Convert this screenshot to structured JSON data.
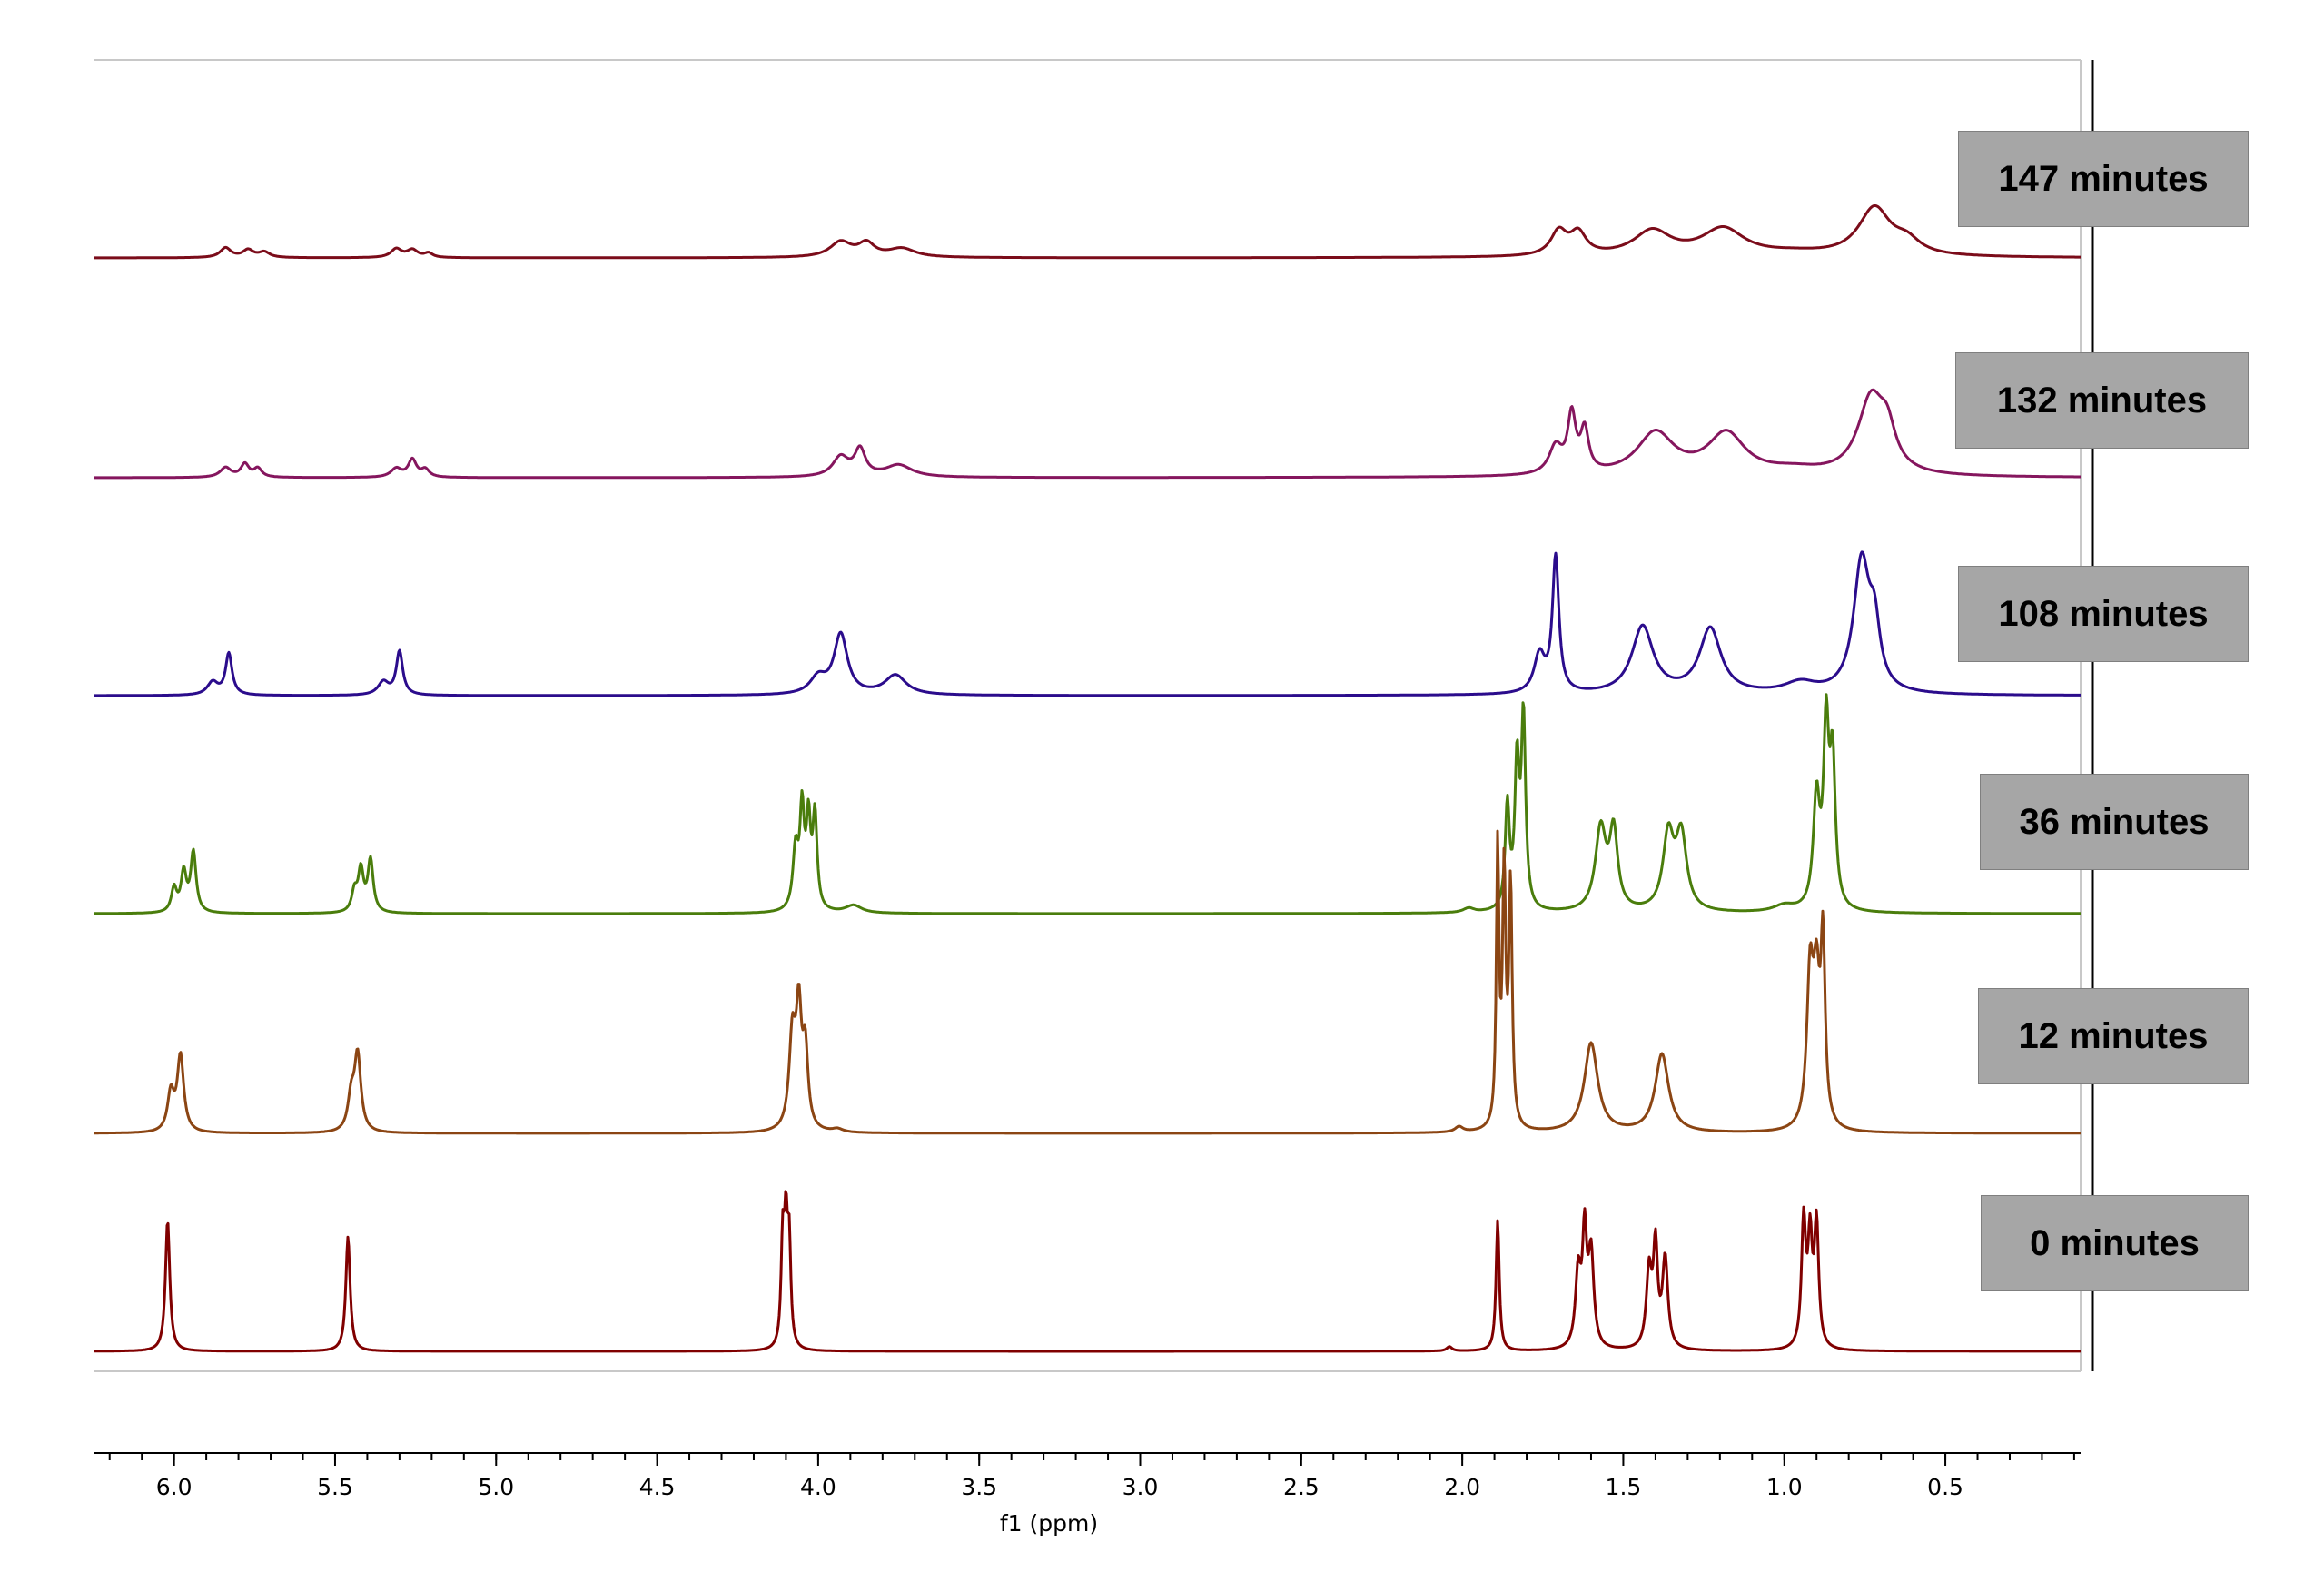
{
  "chart_data": {
    "type": "line",
    "title": "",
    "xlabel": "f1 (ppm)",
    "ylabel": "",
    "xlim": [
      6.25,
      0.08
    ],
    "x_reversed": true,
    "grid": false,
    "legend_placement": "right",
    "x_ticks": [
      6.0,
      5.5,
      5.0,
      4.5,
      4.0,
      3.5,
      3.0,
      2.5,
      2.0,
      1.5,
      1.0,
      0.5
    ],
    "x_tick_labels": [
      "6.0",
      "5.5",
      "5.0",
      "4.5",
      "4.0",
      "3.5",
      "3.0",
      "2.5",
      "2.0",
      "1.5",
      "1.0",
      "0.5"
    ],
    "series": [
      {
        "name": "147 minutes",
        "color": "#7b0c1a",
        "label": "147 minutes",
        "peaks": [
          {
            "ppm": 5.84,
            "height": 0.09,
            "width": 0.02
          },
          {
            "ppm": 5.77,
            "height": 0.07,
            "width": 0.02
          },
          {
            "ppm": 5.72,
            "height": 0.05,
            "width": 0.02
          },
          {
            "ppm": 5.31,
            "height": 0.08,
            "width": 0.02
          },
          {
            "ppm": 5.26,
            "height": 0.07,
            "width": 0.02
          },
          {
            "ppm": 5.21,
            "height": 0.04,
            "width": 0.015
          },
          {
            "ppm": 3.93,
            "height": 0.14,
            "width": 0.04
          },
          {
            "ppm": 3.85,
            "height": 0.12,
            "width": 0.03
          },
          {
            "ppm": 3.74,
            "height": 0.08,
            "width": 0.05
          },
          {
            "ppm": 1.7,
            "height": 0.22,
            "width": 0.03
          },
          {
            "ppm": 1.64,
            "height": 0.2,
            "width": 0.03
          },
          {
            "ppm": 1.41,
            "height": 0.23,
            "width": 0.07
          },
          {
            "ppm": 1.19,
            "height": 0.25,
            "width": 0.08
          },
          {
            "ppm": 0.72,
            "height": 0.44,
            "width": 0.06
          },
          {
            "ppm": 0.62,
            "height": 0.12,
            "width": 0.05
          },
          {
            "ppm": 0.97,
            "height": 0.03,
            "width": 0.12
          }
        ]
      },
      {
        "name": "132 minutes",
        "color": "#85165e",
        "label": "132 minutes",
        "peaks": [
          {
            "ppm": 5.84,
            "height": 0.09,
            "width": 0.02
          },
          {
            "ppm": 5.78,
            "height": 0.12,
            "width": 0.015
          },
          {
            "ppm": 5.74,
            "height": 0.08,
            "width": 0.015
          },
          {
            "ppm": 5.31,
            "height": 0.08,
            "width": 0.02
          },
          {
            "ppm": 5.26,
            "height": 0.16,
            "width": 0.015
          },
          {
            "ppm": 5.22,
            "height": 0.07,
            "width": 0.015
          },
          {
            "ppm": 3.93,
            "height": 0.18,
            "width": 0.03
          },
          {
            "ppm": 3.87,
            "height": 0.24,
            "width": 0.02
          },
          {
            "ppm": 3.75,
            "height": 0.11,
            "width": 0.05
          },
          {
            "ppm": 1.71,
            "height": 0.25,
            "width": 0.025
          },
          {
            "ppm": 1.66,
            "height": 0.52,
            "width": 0.015
          },
          {
            "ppm": 1.62,
            "height": 0.38,
            "width": 0.015
          },
          {
            "ppm": 1.4,
            "height": 0.39,
            "width": 0.07
          },
          {
            "ppm": 1.18,
            "height": 0.38,
            "width": 0.07
          },
          {
            "ppm": 0.73,
            "height": 0.7,
            "width": 0.05
          },
          {
            "ppm": 0.68,
            "height": 0.3,
            "width": 0.03
          },
          {
            "ppm": 0.97,
            "height": 0.05,
            "width": 0.1
          }
        ]
      },
      {
        "name": "108 minutes",
        "color": "#2b0c8c",
        "label": "108 minutes",
        "peaks": [
          {
            "ppm": 5.88,
            "height": 0.12,
            "width": 0.02
          },
          {
            "ppm": 5.83,
            "height": 0.38,
            "width": 0.012
          },
          {
            "ppm": 5.35,
            "height": 0.12,
            "width": 0.02
          },
          {
            "ppm": 5.3,
            "height": 0.4,
            "width": 0.012
          },
          {
            "ppm": 4.0,
            "height": 0.15,
            "width": 0.03
          },
          {
            "ppm": 3.93,
            "height": 0.55,
            "width": 0.025
          },
          {
            "ppm": 3.76,
            "height": 0.18,
            "width": 0.04
          },
          {
            "ppm": 1.76,
            "height": 0.35,
            "width": 0.02
          },
          {
            "ppm": 1.71,
            "height": 1.24,
            "width": 0.012
          },
          {
            "ppm": 1.44,
            "height": 0.62,
            "width": 0.04
          },
          {
            "ppm": 1.23,
            "height": 0.6,
            "width": 0.04
          },
          {
            "ppm": 0.76,
            "height": 1.2,
            "width": 0.03
          },
          {
            "ppm": 0.72,
            "height": 0.5,
            "width": 0.02
          },
          {
            "ppm": 0.95,
            "height": 0.1,
            "width": 0.06
          }
        ]
      },
      {
        "name": "36 minutes",
        "color": "#4a7d0c",
        "label": "36 minutes",
        "peaks": [
          {
            "ppm": 6.0,
            "height": 0.22,
            "width": 0.01
          },
          {
            "ppm": 5.97,
            "height": 0.36,
            "width": 0.01
          },
          {
            "ppm": 5.94,
            "height": 0.55,
            "width": 0.01
          },
          {
            "ppm": 5.44,
            "height": 0.18,
            "width": 0.01
          },
          {
            "ppm": 5.42,
            "height": 0.38,
            "width": 0.01
          },
          {
            "ppm": 5.39,
            "height": 0.48,
            "width": 0.01
          },
          {
            "ppm": 4.07,
            "height": 0.55,
            "width": 0.01
          },
          {
            "ppm": 4.05,
            "height": 0.88,
            "width": 0.008
          },
          {
            "ppm": 4.03,
            "height": 0.78,
            "width": 0.008
          },
          {
            "ppm": 4.01,
            "height": 0.85,
            "width": 0.008
          },
          {
            "ppm": 3.89,
            "height": 0.07,
            "width": 0.03
          },
          {
            "ppm": 1.86,
            "height": 0.95,
            "width": 0.008
          },
          {
            "ppm": 1.83,
            "height": 1.3,
            "width": 0.008
          },
          {
            "ppm": 1.81,
            "height": 1.75,
            "width": 0.008
          },
          {
            "ppm": 1.57,
            "height": 0.75,
            "width": 0.02
          },
          {
            "ppm": 1.53,
            "height": 0.7,
            "width": 0.015
          },
          {
            "ppm": 1.36,
            "height": 0.68,
            "width": 0.02
          },
          {
            "ppm": 1.32,
            "height": 0.68,
            "width": 0.02
          },
          {
            "ppm": 0.9,
            "height": 1.0,
            "width": 0.012
          },
          {
            "ppm": 0.87,
            "height": 1.6,
            "width": 0.01
          },
          {
            "ppm": 0.85,
            "height": 1.3,
            "width": 0.01
          },
          {
            "ppm": 1.98,
            "height": 0.04,
            "width": 0.02
          },
          {
            "ppm": 1.0,
            "height": 0.06,
            "width": 0.04
          }
        ]
      },
      {
        "name": "12 minutes",
        "color": "#8b4513",
        "label": "12 minutes",
        "peaks": [
          {
            "ppm": 6.01,
            "height": 0.35,
            "width": 0.012
          },
          {
            "ppm": 5.98,
            "height": 0.7,
            "width": 0.012
          },
          {
            "ppm": 5.45,
            "height": 0.3,
            "width": 0.012
          },
          {
            "ppm": 5.43,
            "height": 0.7,
            "width": 0.012
          },
          {
            "ppm": 4.08,
            "height": 0.85,
            "width": 0.012
          },
          {
            "ppm": 4.06,
            "height": 1.02,
            "width": 0.01
          },
          {
            "ppm": 4.04,
            "height": 0.7,
            "width": 0.01
          },
          {
            "ppm": 1.89,
            "height": 2.55,
            "width": 0.005
          },
          {
            "ppm": 1.87,
            "height": 2.3,
            "width": 0.006
          },
          {
            "ppm": 1.85,
            "height": 2.2,
            "width": 0.006
          },
          {
            "ppm": 1.6,
            "height": 0.82,
            "width": 0.025
          },
          {
            "ppm": 1.38,
            "height": 0.72,
            "width": 0.025
          },
          {
            "ppm": 0.92,
            "height": 1.35,
            "width": 0.012
          },
          {
            "ppm": 0.9,
            "height": 1.2,
            "width": 0.012
          },
          {
            "ppm": 0.88,
            "height": 1.6,
            "width": 0.008
          },
          {
            "ppm": 2.01,
            "height": 0.05,
            "width": 0.015
          },
          {
            "ppm": 3.94,
            "height": 0.03,
            "width": 0.02
          }
        ]
      },
      {
        "name": "0 minutes",
        "color": "#800000",
        "label": "0 minutes",
        "peaks": [
          {
            "ppm": 6.02,
            "height": 1.2,
            "width": 0.008
          },
          {
            "ppm": 5.46,
            "height": 1.05,
            "width": 0.008
          },
          {
            "ppm": 4.11,
            "height": 0.95,
            "width": 0.006
          },
          {
            "ppm": 4.1,
            "height": 1.0,
            "width": 0.006
          },
          {
            "ppm": 4.09,
            "height": 0.92,
            "width": 0.006
          },
          {
            "ppm": 1.89,
            "height": 1.2,
            "width": 0.006
          },
          {
            "ppm": 1.64,
            "height": 0.68,
            "width": 0.01
          },
          {
            "ppm": 1.62,
            "height": 1.0,
            "width": 0.008
          },
          {
            "ppm": 1.6,
            "height": 0.85,
            "width": 0.01
          },
          {
            "ppm": 1.42,
            "height": 0.7,
            "width": 0.01
          },
          {
            "ppm": 1.4,
            "height": 0.9,
            "width": 0.008
          },
          {
            "ppm": 1.37,
            "height": 0.82,
            "width": 0.01
          },
          {
            "ppm": 0.94,
            "height": 1.15,
            "width": 0.008
          },
          {
            "ppm": 0.92,
            "height": 0.95,
            "width": 0.008
          },
          {
            "ppm": 0.9,
            "height": 1.12,
            "width": 0.008
          },
          {
            "ppm": 2.04,
            "height": 0.04,
            "width": 0.01
          }
        ]
      }
    ]
  }
}
